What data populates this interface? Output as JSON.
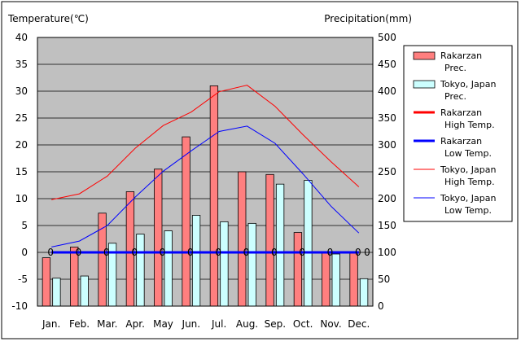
{
  "chart_data": {
    "type": "bar",
    "y_left_label": "Temperature(℃)",
    "y_right_label": "Precipitation(mm)",
    "ylim_left": [
      -10,
      40
    ],
    "ylim_right": [
      0,
      500
    ],
    "y_left_ticks": [
      "40",
      "35",
      "30",
      "25",
      "20",
      "15",
      "10",
      "5",
      "0",
      "-5",
      "-10"
    ],
    "y_right_ticks": [
      "500",
      "450",
      "400",
      "350",
      "300",
      "250",
      "200",
      "150",
      "100",
      "50",
      "0"
    ],
    "categories": [
      "Jan.",
      "Feb.",
      "Mar.",
      "Apr.",
      "May",
      "Jun.",
      "Jul.",
      "Aug.",
      "Sep.",
      "Oct.",
      "Nov.",
      "Dec."
    ],
    "grid": true,
    "plot_background": "#c0c0c0",
    "bar_series": [
      {
        "name": "Rakarzan Prec.",
        "color": "#ff7f7f",
        "axis": "right",
        "values": [
          90,
          110,
          173,
          213,
          255,
          315,
          410,
          250,
          245,
          137,
          99,
          99
        ]
      },
      {
        "name": "Tokyo, Japan Prec.",
        "color": "#ccffff",
        "axis": "right",
        "values": [
          52,
          56,
          117,
          134,
          140,
          169,
          157,
          154,
          227,
          234,
          97,
          51
        ]
      }
    ],
    "line_series": [
      {
        "name": "Rakarzan High Temp.",
        "color": "#ff0000",
        "width": "thick",
        "axis": "left",
        "values": [
          0,
          0,
          0,
          0,
          0,
          0,
          0,
          0,
          0,
          0,
          0,
          0
        ],
        "point_labels": [
          "0",
          "0",
          "0",
          "0",
          "0",
          "0",
          "0",
          "0",
          "0",
          "0",
          "0",
          "0"
        ]
      },
      {
        "name": "Rakarzan Low Temp.",
        "color": "#0000ff",
        "width": "thick",
        "axis": "left",
        "values": [
          0,
          0,
          0,
          0,
          0,
          0,
          0,
          0,
          0,
          0,
          0,
          0
        ]
      },
      {
        "name": "Tokyo, Japan High Temp.",
        "color": "#ff0000",
        "width": "thin",
        "axis": "left",
        "values": [
          9.8,
          10.9,
          14.2,
          19.4,
          23.6,
          26.1,
          29.9,
          31.1,
          27.2,
          21.9,
          16.9,
          12.2
        ]
      },
      {
        "name": "Tokyo, Japan Low Temp.",
        "color": "#0000ff",
        "width": "thin",
        "axis": "left",
        "values": [
          1.0,
          2.1,
          5.0,
          10.3,
          15.1,
          18.9,
          22.5,
          23.5,
          20.3,
          14.6,
          8.6,
          3.6
        ]
      }
    ],
    "legend": {
      "placement": "right",
      "entries": [
        {
          "line1": "Rakarzan",
          "line2": "Prec.",
          "kind": "bar",
          "color": "#ff7f7f"
        },
        {
          "line1": "Tokyo, Japan",
          "line2": "Prec.",
          "kind": "bar",
          "color": "#ccffff"
        },
        {
          "line1": "Rakarzan",
          "line2": "High Temp.",
          "kind": "line-thick",
          "color": "#ff0000"
        },
        {
          "line1": "Rakarzan",
          "line2": "Low Temp.",
          "kind": "line-thick",
          "color": "#0000ff"
        },
        {
          "line1": "Tokyo, Japan",
          "line2": "High Temp.",
          "kind": "line-thin",
          "color": "#ff0000"
        },
        {
          "line1": "Tokyo, Japan",
          "line2": "Low Temp.",
          "kind": "line-thin",
          "color": "#0000ff"
        }
      ]
    }
  }
}
